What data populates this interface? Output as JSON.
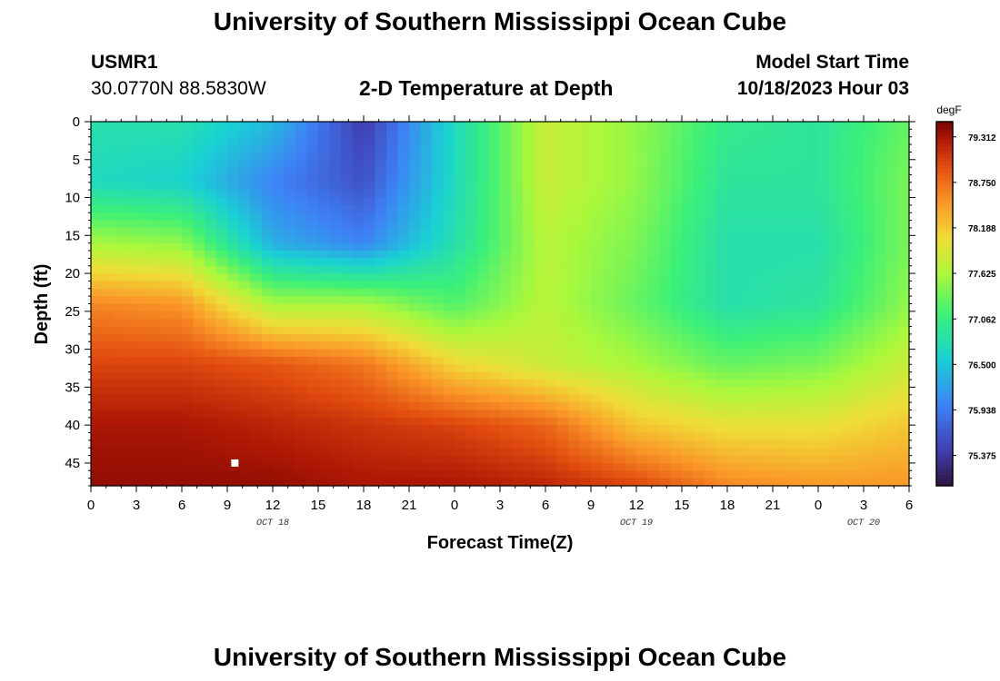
{
  "header": {
    "title": "University of Southern Mississippi Ocean Cube",
    "station_id": "USMR1",
    "station_coords": "30.0770N  88.5830W",
    "plot_title": "2-D Temperature at Depth",
    "model_start_label": "Model Start Time",
    "model_start_value": "10/18/2023 Hour 03"
  },
  "footer": {
    "title": "University of Southern Mississippi Ocean Cube"
  },
  "chart_data": {
    "type": "heatmap",
    "title": "2-D Temperature at Depth",
    "xlabel": "Forecast Time(Z)",
    "ylabel": "Depth (ft)",
    "x_tick_labels": [
      "0",
      "3",
      "6",
      "9",
      "12",
      "15",
      "18",
      "21",
      "0",
      "3",
      "6",
      "9",
      "12",
      "15",
      "18",
      "21",
      "0",
      "3",
      "6"
    ],
    "date_labels": [
      {
        "label": "OCT 18",
        "x_hours": 12
      },
      {
        "label": "OCT 19",
        "x_hours": 36
      },
      {
        "label": "OCT 20",
        "x_hours": 51
      }
    ],
    "xlim_hours": [
      0,
      54
    ],
    "y_ticks": [
      0,
      5,
      10,
      15,
      20,
      25,
      30,
      35,
      40,
      45
    ],
    "ylim": [
      0,
      48
    ],
    "y_inverted": true,
    "colorbar": {
      "unit": "degF",
      "min": 75.0,
      "max": 79.5,
      "tick_values": [
        79.312,
        78.75,
        78.188,
        77.625,
        77.062,
        76.5,
        75.938,
        75.375
      ],
      "tick_labels": [
        "79.312",
        "78.750",
        "78.188",
        "77.625",
        "77.062",
        "76.500",
        "75.938",
        "75.375"
      ],
      "colormap": "turbo"
    },
    "marker": {
      "x_hours": 9.5,
      "depth_ft": 45
    },
    "grid_times_hours": [
      0,
      6,
      12,
      18,
      24,
      30,
      36,
      42,
      48,
      54
    ],
    "grid_depths_ft": [
      0,
      8,
      16,
      24,
      32,
      40,
      48
    ],
    "values_degF": [
      [
        76.8,
        76.8,
        76.4,
        75.4,
        76.7,
        77.8,
        77.5,
        77.0,
        76.9,
        77.3
      ],
      [
        76.7,
        76.6,
        76.0,
        75.6,
        76.7,
        77.8,
        77.5,
        76.9,
        76.9,
        77.4
      ],
      [
        77.6,
        77.5,
        76.3,
        76.0,
        76.8,
        77.7,
        77.4,
        76.8,
        76.8,
        77.4
      ],
      [
        78.6,
        78.5,
        77.6,
        77.6,
        77.2,
        77.7,
        77.3,
        76.8,
        76.9,
        77.5
      ],
      [
        79.0,
        79.0,
        78.9,
        78.7,
        78.1,
        77.8,
        77.6,
        77.3,
        77.4,
        77.8
      ],
      [
        79.3,
        79.3,
        79.2,
        79.1,
        79.0,
        78.8,
        78.2,
        78.0,
        78.0,
        78.2
      ],
      [
        79.4,
        79.4,
        79.4,
        79.3,
        79.3,
        79.2,
        79.0,
        78.6,
        78.5,
        78.5
      ]
    ]
  }
}
